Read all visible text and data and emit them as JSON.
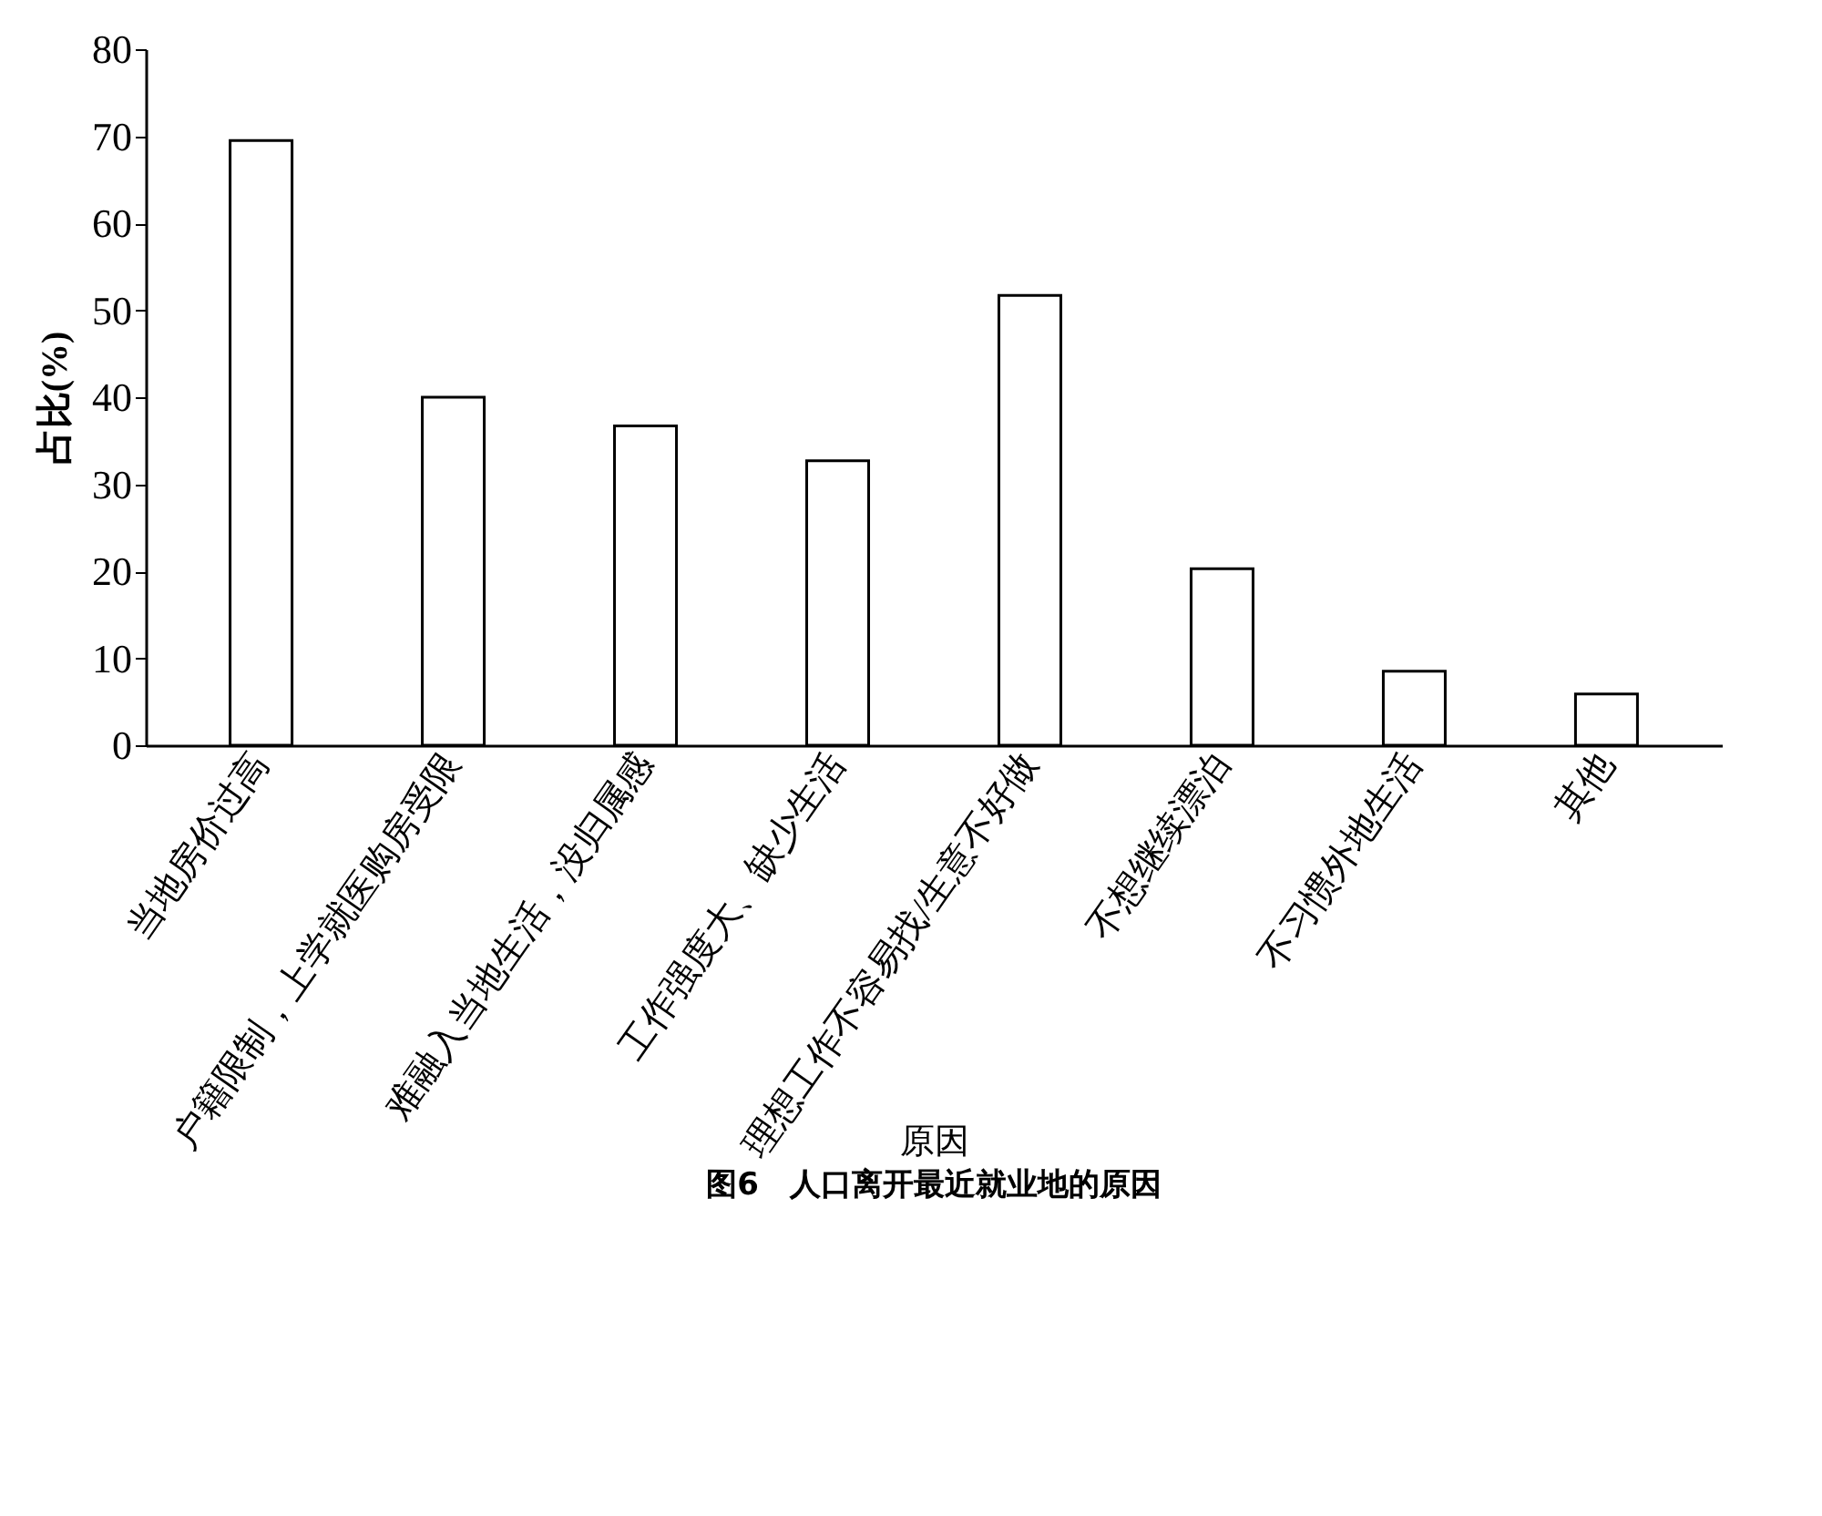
{
  "chart_data": {
    "type": "bar",
    "title": "图6　人口离开最近就业地的原因",
    "xlabel": "原因",
    "ylabel": "占比(%)",
    "categories": [
      "当地房价过高",
      "户籍限制，上学就医购房受限",
      "难融入当地生活，没归属感",
      "工作强度大、缺少生活",
      "理想工作不容易找/生意不好做",
      "不想继续漂泊",
      "不习惯外地生活",
      "其他"
    ],
    "values": [
      69.5,
      40,
      36.7,
      32.7,
      51.7,
      20.3,
      8.5,
      5.9
    ],
    "color": "#ffffff",
    "ylim": [
      0,
      80
    ],
    "yticks": [
      0,
      10,
      20,
      30,
      40,
      50,
      60,
      70,
      80
    ],
    "grid": false
  }
}
